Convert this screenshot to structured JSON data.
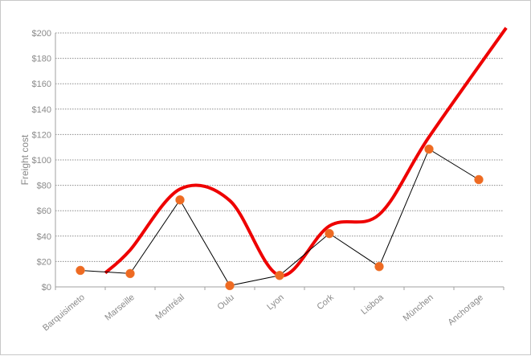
{
  "chart_data": {
    "type": "line",
    "ylabel": "Freight cost",
    "xlabel": "",
    "title": "",
    "ylim": [
      0,
      200
    ],
    "y_ticks": [
      0,
      20,
      40,
      60,
      80,
      100,
      120,
      140,
      160,
      180,
      200
    ],
    "y_tick_labels": [
      "$0",
      "$20",
      "$40",
      "$60",
      "$80",
      "$100",
      "$120",
      "$140",
      "$160",
      "$180",
      "$200"
    ],
    "categories": [
      "Barquisimeto",
      "Marseille",
      "Montréal",
      "Oulu",
      "Lyon",
      "Cork",
      "Lisboa",
      "München",
      "Anchorage"
    ],
    "grid": "horizontal dotted",
    "series": [
      {
        "style": "thin black line with orange circular markers",
        "color": "#000000",
        "marker_color": "#ee6a22",
        "values": [
          13,
          10.5,
          68.5,
          1,
          9,
          42,
          16,
          108.5,
          84.5
        ]
      },
      {
        "style": "thick red smoothed trend line",
        "color": "#ee0000",
        "x_start": 0.5,
        "x_end": 8.55,
        "values_at_categories": [
          null,
          29,
          77,
          68,
          9,
          48,
          57,
          118,
          204
        ]
      }
    ]
  }
}
